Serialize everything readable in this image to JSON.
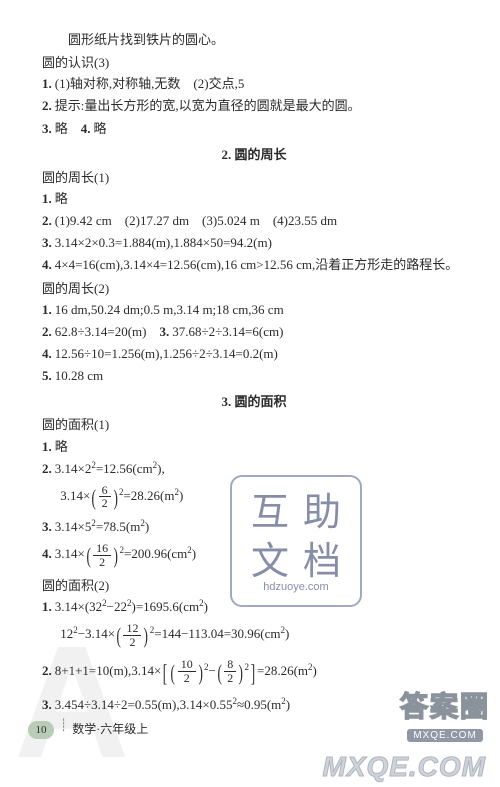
{
  "intro_line": "圆形纸片找到铁片的圆心。",
  "rec3_title": "圆的认识(3)",
  "rec3_q1": "(1)轴对称,对称轴,无数　(2)交点,5",
  "rec3_q2": "提示:量出长方形的宽,以宽为直径的圆就是最大的圆。",
  "rec3_q3": "略",
  "rec3_q4": "略",
  "section2_title": "2. 圆的周长",
  "cir1_title": "圆的周长(1)",
  "cir1_q1": "略",
  "cir1_q2": "(1)9.42 cm　(2)17.27 dm　(3)5.024 m　(4)23.55 dm",
  "cir1_q3": "3.14×2×0.3=1.884(m),1.884×50=94.2(m)",
  "cir1_q4": "4×4=16(cm),3.14×4=12.56(cm),16 cm>12.56 cm,沿着正方形走的路程长。",
  "cir2_title": "圆的周长(2)",
  "cir2_q1": "16 dm,50.24 dm;0.5 m,3.14 m;18 cm,36 cm",
  "cir2_q2": "62.8÷3.14=20(m)",
  "cir2_q3": "37.68÷2÷3.14=6(cm)",
  "cir2_q4": "12.56÷10=1.256(m),1.256÷2÷3.14=0.2(m)",
  "cir2_q5": "10.28 cm",
  "section3_title": "3. 圆的面积",
  "area1_title": "圆的面积(1)",
  "area1_q1": "略",
  "area1_q2a": "3.14×2",
  "area1_q2a_tail": "=12.56(cm",
  "area1_q2b_pre": "3.14×",
  "area1_q2b_fn": "6",
  "area1_q2b_fd": "2",
  "area1_q2b_tail": "=28.26(m",
  "area1_q3_pre": "3.14×5",
  "area1_q3_tail": "=78.5(m",
  "area1_q4_pre": "3.14×",
  "area1_q4_fn": "16",
  "area1_q4_fd": "2",
  "area1_q4_tail": "=200.96(cm",
  "area2_title": "圆的面积(2)",
  "area2_q1a": "3.14×(32",
  "area2_q1b": "−22",
  "area2_q1c": ")=1695.6(cm",
  "area2_q1d_pre": "12",
  "area2_q1d_mid": "−3.14×",
  "area2_q1d_fn": "12",
  "area2_q1d_fd": "2",
  "area2_q1d_tail": "=144−113.04=30.96(cm",
  "area2_q2_a": "8+1+1=10(m),3.14×",
  "area2_q2_fn1": "10",
  "area2_q2_fd1": "2",
  "area2_q2_fn2": "8",
  "area2_q2_fd2": "2",
  "area2_q2_tail": "=28.26(m",
  "area2_q3": "3.454÷3.14÷2=0.55(m),3.14×0.55",
  "area2_q3_tail": "≈0.95(m",
  "page_label": "数学·六年级上",
  "page_num": "10",
  "stamp_l1": "互助",
  "stamp_l2": "文档",
  "stamp_url": "hdzuoye.com",
  "wm_han": "答案圈",
  "wm_pill": "MXQE.COM",
  "wm_bottom": "MXQE.COM"
}
